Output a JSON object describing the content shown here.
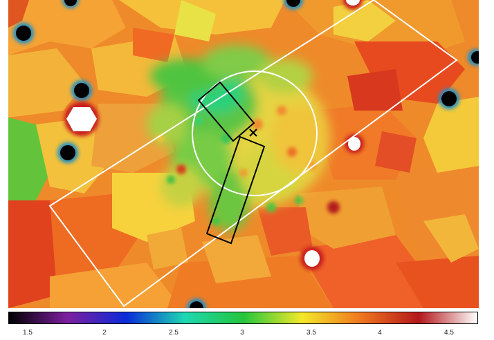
{
  "colorbar": {
    "colors": [
      "#000000",
      "#7d1f9e",
      "#0a2ad9",
      "#1ed8b2",
      "#24c53c",
      "#f2e82a",
      "#f0771f",
      "#b3171c",
      "#ffffff"
    ],
    "ticks": [
      "1.5",
      "2",
      "2.5",
      "3",
      "3.5",
      "4",
      "4.5"
    ]
  },
  "overlay": {
    "rectangle_color": "#ffffff",
    "circle_color": "#ffffff",
    "slit_color": "#000000",
    "marker": "cross"
  }
}
